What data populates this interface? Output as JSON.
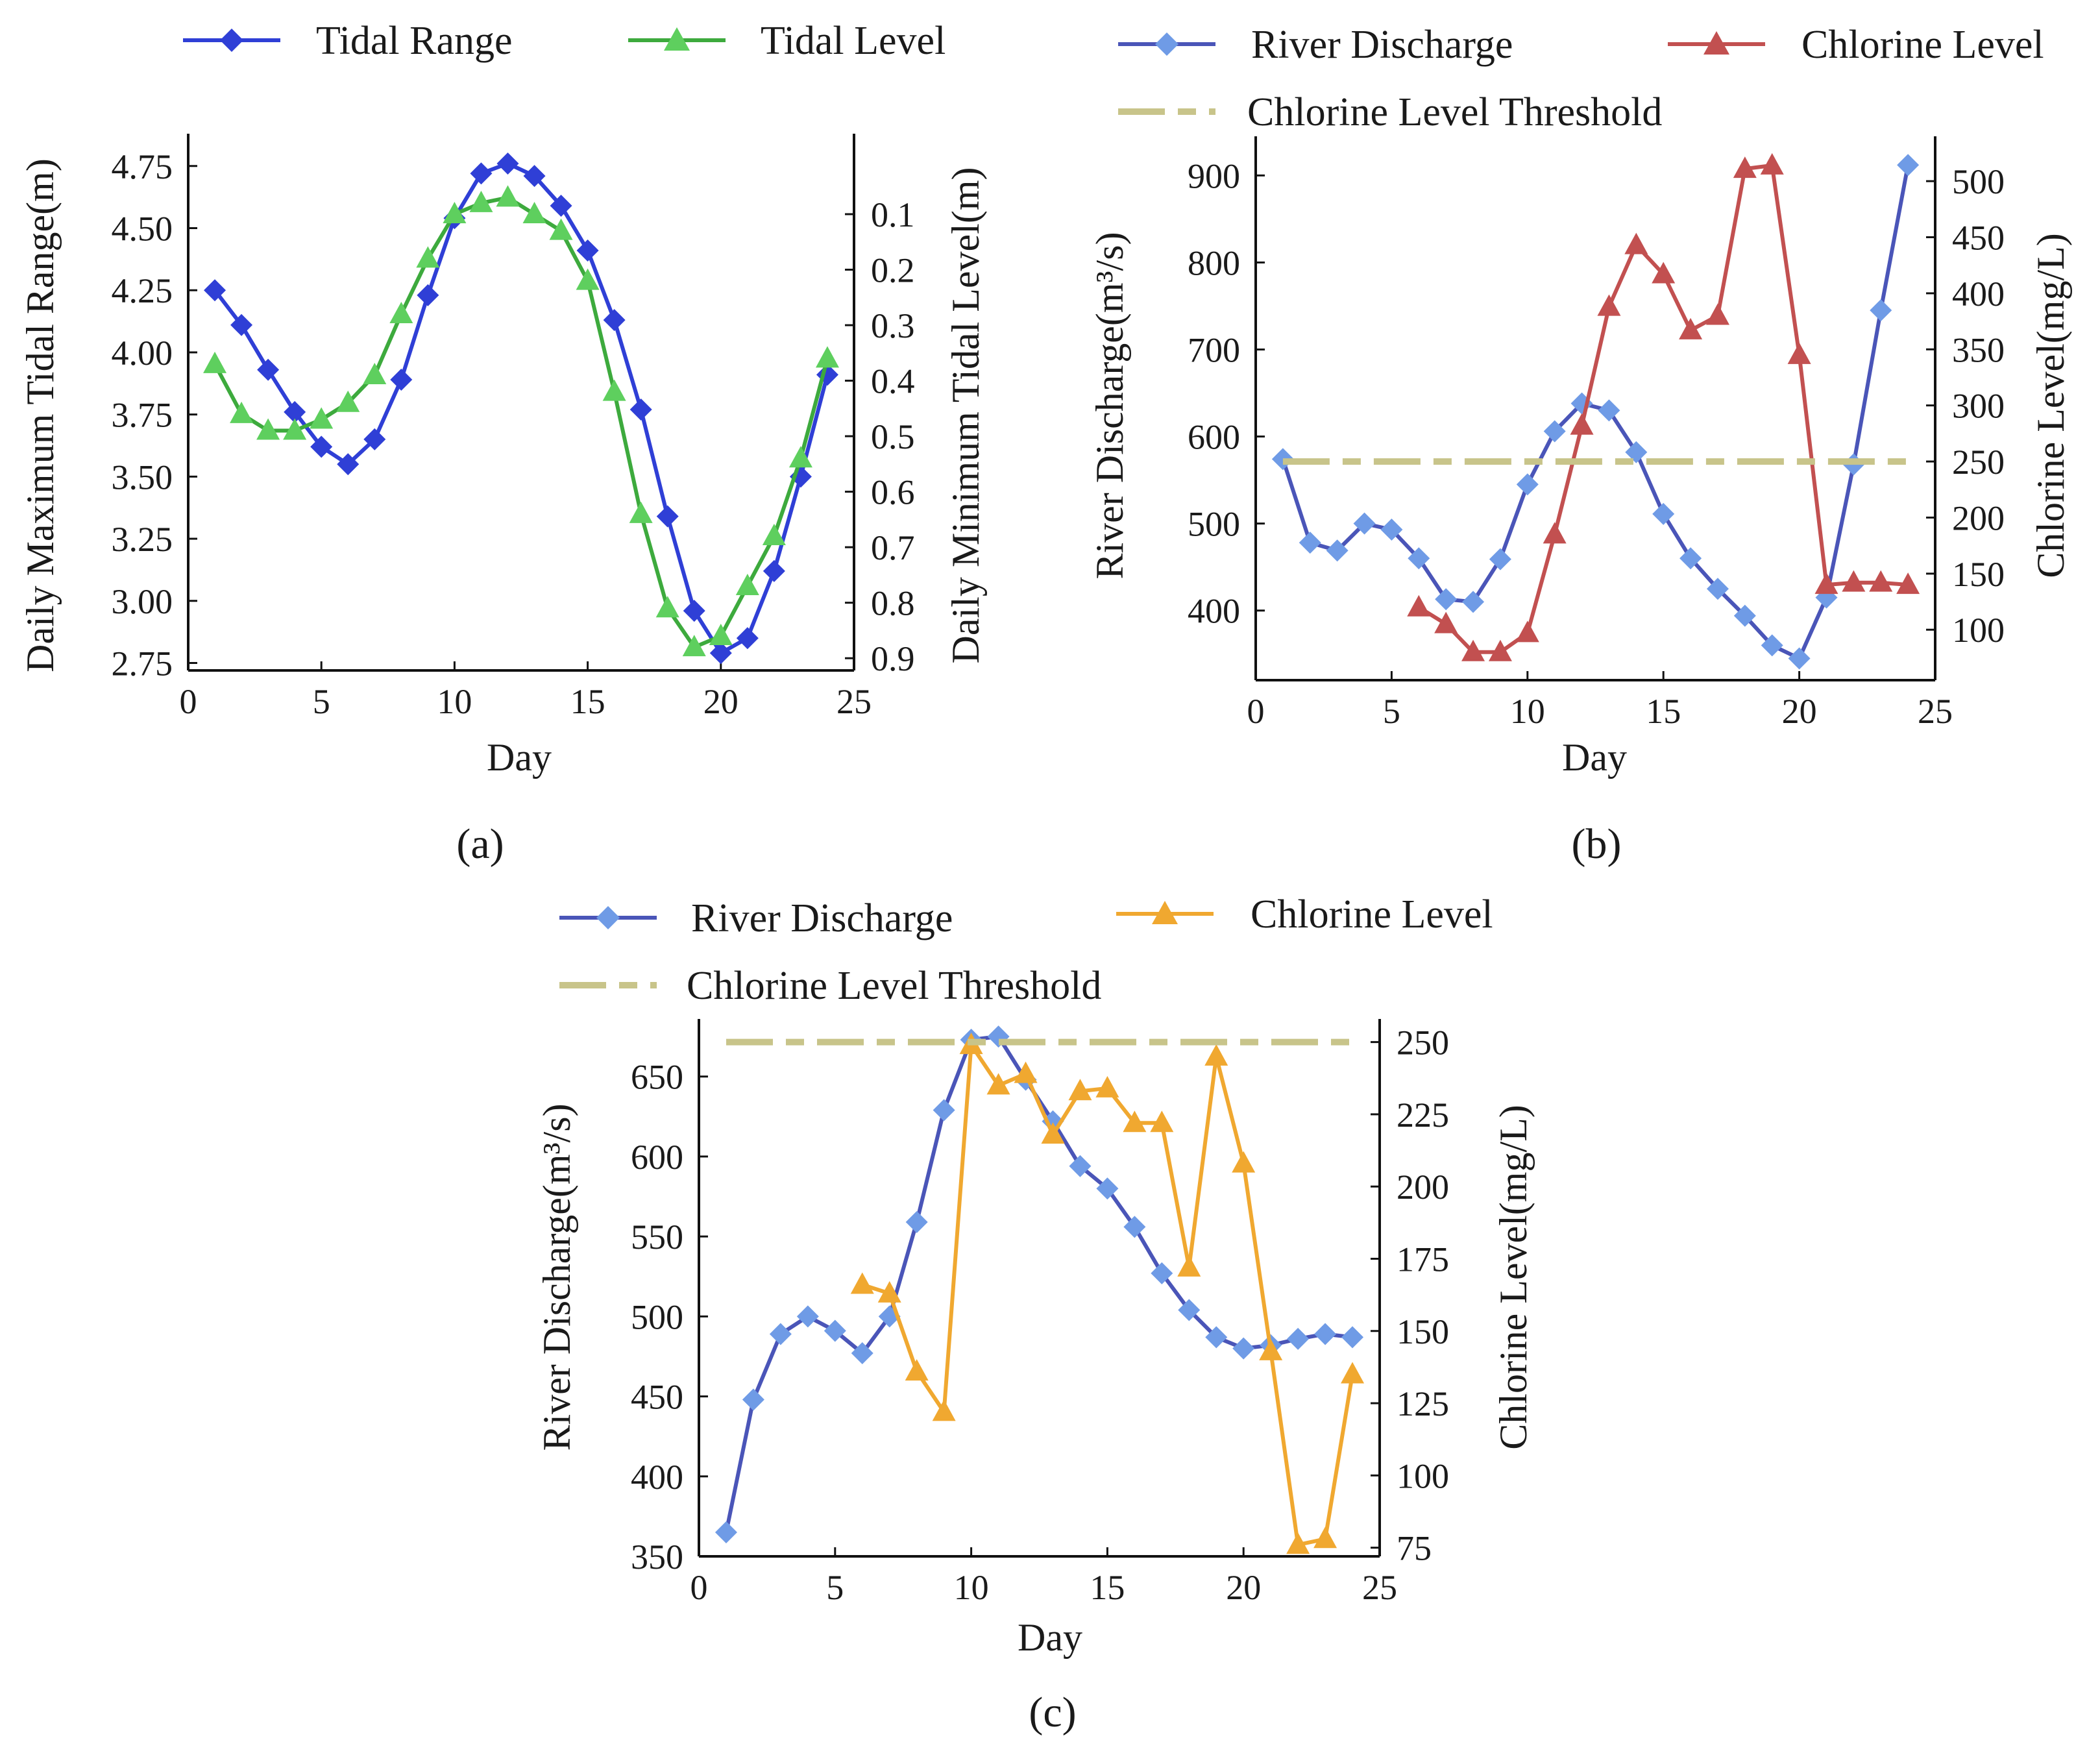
{
  "chart_data": [
    {
      "panel": "(a)",
      "type": "line",
      "xlabel": "Day",
      "ylabel": "Daily Maximum Tidal Range(m)",
      "y2label": "Daily Minimum Tidal Level(m)",
      "xlim": [
        0,
        25
      ],
      "ylim": [
        2.72,
        4.88
      ],
      "y2lim": [
        0.922,
        -0.045
      ],
      "y2_inverted": true,
      "xticks": [
        0,
        5,
        10,
        15,
        20,
        25
      ],
      "yticks": [
        2.75,
        3.0,
        3.25,
        3.5,
        3.75,
        4.0,
        4.25,
        4.5,
        4.75
      ],
      "ytick_labels": [
        "2.75",
        "3.00",
        "3.25",
        "3.50",
        "3.75",
        "4.00",
        "4.25",
        "4.50",
        "4.75"
      ],
      "y2ticks": [
        0.1,
        0.2,
        0.3,
        0.4,
        0.5,
        0.6,
        0.7,
        0.8,
        0.9
      ],
      "y2tick_labels": [
        "0.1",
        "0.2",
        "0.3",
        "0.4",
        "0.5",
        "0.6",
        "0.7",
        "0.8",
        "0.9"
      ],
      "legend_position": "top",
      "series": [
        {
          "name": "Tidal Range",
          "axis": "left",
          "color": "#2f3fd6",
          "marker": "diamond",
          "x": [
            1,
            2,
            3,
            4,
            5,
            6,
            7,
            8,
            9,
            10,
            11,
            12,
            13,
            14,
            15,
            16,
            17,
            18,
            19,
            20,
            21,
            22,
            23,
            24
          ],
          "y": [
            4.25,
            4.11,
            3.93,
            3.76,
            3.62,
            3.55,
            3.65,
            3.89,
            4.23,
            4.54,
            4.72,
            4.76,
            4.71,
            4.59,
            4.41,
            4.13,
            3.77,
            3.34,
            2.96,
            2.79,
            2.85,
            3.12,
            3.5,
            3.91
          ]
        },
        {
          "name": "Tidal Level",
          "axis": "right",
          "color": "#3daa3d",
          "marker": "triangle",
          "x": [
            1,
            2,
            3,
            4,
            5,
            6,
            7,
            8,
            9,
            10,
            11,
            12,
            13,
            14,
            15,
            16,
            17,
            18,
            19,
            20,
            21,
            22,
            23,
            24
          ],
          "y": [
            0.37,
            0.46,
            0.49,
            0.49,
            0.47,
            0.44,
            0.39,
            0.28,
            0.18,
            0.1,
            0.08,
            0.07,
            0.1,
            0.13,
            0.22,
            0.42,
            0.64,
            0.81,
            0.88,
            0.86,
            0.77,
            0.68,
            0.54,
            0.36
          ]
        }
      ]
    },
    {
      "panel": "(b)",
      "type": "line",
      "xlabel": "Day",
      "ylabel": "River Discharge(m³/s)",
      "y2label": "Chlorine Level(mg/L)",
      "xlim": [
        0,
        25
      ],
      "ylim": [
        320,
        945
      ],
      "y2lim": [
        55,
        540
      ],
      "xticks": [
        0,
        5,
        10,
        15,
        20,
        25
      ],
      "yticks": [
        400,
        500,
        600,
        700,
        800,
        900
      ],
      "y2ticks": [
        100,
        150,
        200,
        250,
        300,
        350,
        400,
        450,
        500
      ],
      "legend_position": "top",
      "series": [
        {
          "name": "River Discharge",
          "axis": "left",
          "color": "#4a55b8",
          "marker_color": "#6f9be6",
          "marker": "diamond",
          "x": [
            1,
            2,
            3,
            4,
            5,
            6,
            7,
            8,
            9,
            10,
            11,
            12,
            13,
            14,
            15,
            16,
            17,
            18,
            19,
            20,
            21,
            22,
            23,
            24
          ],
          "y": [
            574,
            478,
            469,
            500,
            493,
            460,
            413,
            410,
            459,
            545,
            606,
            638,
            630,
            582,
            511,
            460,
            425,
            394,
            360,
            345,
            415,
            568,
            745,
            912
          ]
        },
        {
          "name": "Chlorine Level",
          "axis": "right",
          "color": "#c25050",
          "marker": "triangle",
          "x": [
            6,
            7,
            8,
            9,
            10,
            11,
            12,
            13,
            14,
            15,
            16,
            17,
            18,
            19,
            20,
            21,
            22,
            23,
            24
          ],
          "y": [
            120,
            105,
            80,
            80,
            97,
            185,
            282,
            388,
            443,
            417,
            367,
            380,
            511,
            514,
            345,
            140,
            142,
            142,
            140
          ]
        },
        {
          "name": "Chlorine Level Threshold",
          "axis": "right",
          "color": "#c8c48a",
          "style": "dashed",
          "x": [
            1,
            24
          ],
          "y": [
            250,
            250
          ]
        }
      ]
    },
    {
      "panel": "(c)",
      "type": "line",
      "xlabel": "Day",
      "ylabel": "River Discharge(m³/s)",
      "y2label": "Chlorine Level(mg/L)",
      "xlim": [
        0,
        25
      ],
      "ylim": [
        350,
        686
      ],
      "y2lim": [
        72,
        258
      ],
      "xticks": [
        0,
        5,
        10,
        15,
        20,
        25
      ],
      "yticks": [
        350,
        400,
        450,
        500,
        550,
        600,
        650
      ],
      "y2ticks": [
        75,
        100,
        125,
        150,
        175,
        200,
        225,
        250
      ],
      "legend_position": "top",
      "series": [
        {
          "name": "River Discharge",
          "axis": "left",
          "color": "#4a55b8",
          "marker_color": "#6f9be6",
          "marker": "diamond",
          "x": [
            1,
            2,
            3,
            4,
            5,
            6,
            7,
            8,
            9,
            10,
            11,
            12,
            13,
            14,
            15,
            16,
            17,
            18,
            19,
            20,
            21,
            22,
            23,
            24
          ],
          "y": [
            365,
            448,
            489,
            500,
            491,
            477,
            500,
            559,
            629,
            673,
            675,
            648,
            622,
            594,
            580,
            556,
            527,
            504,
            487,
            480,
            482,
            486,
            489,
            487
          ]
        },
        {
          "name": "Chlorine Level",
          "axis": "right",
          "color": "#f0a830",
          "marker": "triangle",
          "x": [
            6,
            7,
            8,
            9,
            10,
            11,
            12,
            13,
            14,
            15,
            16,
            17,
            18,
            19,
            20,
            21,
            22,
            23,
            24
          ],
          "y": [
            166,
            163,
            136,
            122,
            249,
            235,
            239,
            218,
            233,
            234,
            222,
            222,
            172,
            245,
            208,
            143,
            76,
            78,
            135
          ]
        },
        {
          "name": "Chlorine Level Threshold",
          "axis": "right",
          "color": "#c8c48a",
          "style": "dashed",
          "x": [
            1,
            24
          ],
          "y": [
            250,
            250
          ]
        }
      ]
    }
  ]
}
